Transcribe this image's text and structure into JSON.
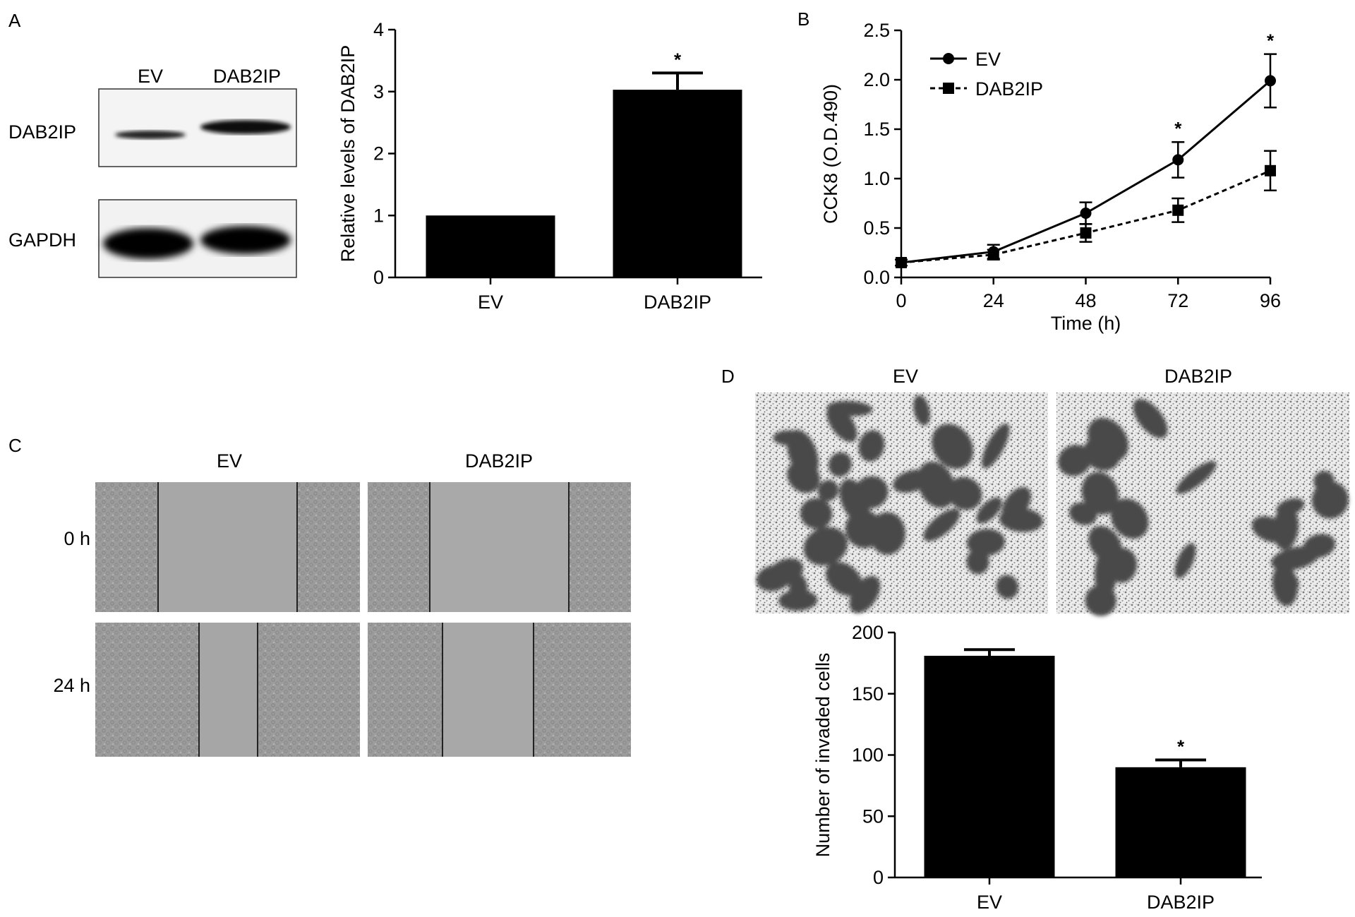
{
  "panels": {
    "A": {
      "letter": "A",
      "blot": {
        "lanes": [
          "EV",
          "DAB2IP"
        ],
        "rows": [
          "DAB2IP",
          "GAPDH"
        ]
      }
    },
    "B": {
      "letter": "B"
    },
    "C": {
      "letter": "C",
      "columns": [
        "EV",
        "DAB2IP"
      ],
      "rows": [
        "0 h",
        "24 h"
      ]
    },
    "D": {
      "letter": "D",
      "columns": [
        "EV",
        "DAB2IP"
      ]
    }
  },
  "colors": {
    "bar": "#000000",
    "image_bg": "#9a9a9a"
  },
  "chart_data": [
    {
      "id": "A-bar",
      "type": "bar",
      "categories": [
        "EV",
        "DAB2IP"
      ],
      "values": [
        1.0,
        3.03
      ],
      "errors": [
        0,
        0.27
      ],
      "significance": [
        "",
        "*"
      ],
      "ylabel": "Relative levels of DAB2IP",
      "ylim": [
        0,
        4
      ],
      "yticks": [
        0,
        1,
        2,
        3,
        4
      ]
    },
    {
      "id": "B-line",
      "type": "line",
      "x": [
        0,
        24,
        48,
        72,
        96
      ],
      "xlabel": "Time (h)",
      "ylabel": "CCK8 (O.D.490)",
      "xlim": [
        0,
        96
      ],
      "ylim": [
        0,
        2.5
      ],
      "xticks": [
        0,
        24,
        48,
        72,
        96
      ],
      "yticks": [
        "0.0",
        "0.5",
        "1.0",
        "1.5",
        "2.0",
        "2.5"
      ],
      "legend_position": "top-left",
      "significance": [
        "",
        "",
        "",
        "*",
        "*"
      ],
      "series": [
        {
          "name": "EV",
          "style": "solid",
          "marker": "circle",
          "values": [
            0.15,
            0.26,
            0.65,
            1.19,
            1.99
          ],
          "errors": [
            0.03,
            0.07,
            0.11,
            0.18,
            0.27
          ]
        },
        {
          "name": "DAB2IP",
          "style": "dashed",
          "marker": "square",
          "values": [
            0.15,
            0.23,
            0.45,
            0.68,
            1.08
          ],
          "errors": [
            0.03,
            0.05,
            0.09,
            0.12,
            0.2
          ]
        }
      ]
    },
    {
      "id": "D-bar",
      "type": "bar",
      "categories": [
        "EV",
        "DAB2IP"
      ],
      "values": [
        181,
        90
      ],
      "errors": [
        5,
        6
      ],
      "significance": [
        "",
        "*"
      ],
      "ylabel": "Number of invaded cells",
      "ylim": [
        0,
        200
      ],
      "yticks": [
        0,
        50,
        100,
        150,
        200
      ]
    }
  ]
}
